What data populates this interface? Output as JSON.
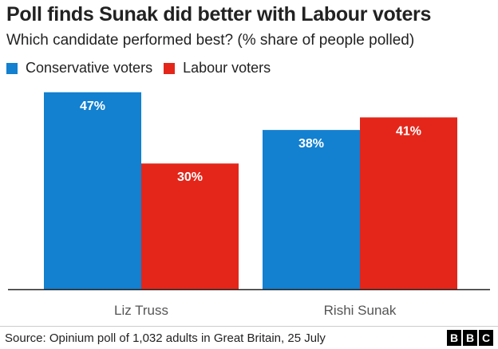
{
  "header": {
    "title": "Poll finds Sunak did better with Labour voters",
    "subtitle": "Which candidate performed best? (% share of people polled)"
  },
  "legend": [
    {
      "label": "Conservative voters",
      "color": "#1380D0"
    },
    {
      "label": "Labour voters",
      "color": "#E4261A"
    }
  ],
  "chart_data": {
    "type": "bar",
    "title": "Poll finds Sunak did better with Labour voters",
    "subtitle": "Which candidate performed best? (% share of people polled)",
    "categories": [
      "Liz Truss",
      "Rishi Sunak"
    ],
    "series": [
      {
        "name": "Conservative voters",
        "values": [
          47,
          38
        ],
        "color": "#1380D0"
      },
      {
        "name": "Labour voters",
        "values": [
          30,
          41
        ],
        "color": "#E4261A"
      }
    ],
    "value_suffix": "%",
    "ylim": [
      0,
      50
    ],
    "grid": false,
    "legend_position": "top-left"
  },
  "footer": {
    "source": "Source: Opinium poll of 1,032 adults in Great Britain, 25 July",
    "logo": [
      "B",
      "B",
      "C"
    ]
  }
}
